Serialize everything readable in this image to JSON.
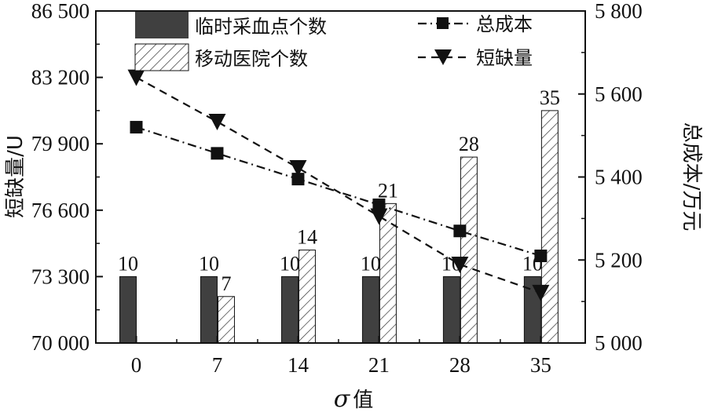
{
  "chart_data": {
    "type": "bar",
    "categories": [
      "0",
      "7",
      "14",
      "21",
      "28",
      "35"
    ],
    "xlabel_symbol": "σ",
    "xlabel_suffix": "值",
    "ylabel_left": "短缺量/U",
    "ylabel_right": "总成本/万元",
    "ylim_left": [
      70000,
      86500
    ],
    "ylim_right": [
      5000,
      5800
    ],
    "yticks_left": [
      70000,
      73300,
      76600,
      79900,
      83200,
      86500
    ],
    "yticks_left_labels": [
      "70 000",
      "73 300",
      "76 600",
      "79 900",
      "83 200",
      "86 500"
    ],
    "yticks_right": [
      5000,
      5200,
      5400,
      5600,
      5800
    ],
    "yticks_right_labels": [
      "5 000",
      "5 200",
      "5 400",
      "5 600",
      "5 800"
    ],
    "bar_series": [
      {
        "name": "临时采血点个数",
        "values": [
          10,
          10,
          10,
          10,
          10,
          10
        ],
        "labels": [
          "10",
          "10",
          "10",
          "10",
          "10",
          "10"
        ],
        "color": "#404040",
        "pattern": "solid"
      },
      {
        "name": "移动医院个数",
        "values": [
          0,
          7,
          14,
          21,
          28,
          35
        ],
        "labels": [
          "",
          "7",
          "14",
          "21",
          "28",
          "35"
        ],
        "color": "#ffffff",
        "pattern": "hatched"
      }
    ],
    "line_series": [
      {
        "name": "总成本",
        "axis": "right",
        "values": [
          5520,
          5457,
          5395,
          5333,
          5270,
          5210
        ],
        "marker": "square",
        "dash": "dash-dot"
      },
      {
        "name": "短缺量",
        "axis": "left",
        "values": [
          83200,
          81000,
          78700,
          76300,
          73900,
          72500
        ],
        "marker": "triangle-down",
        "dash": "dashed"
      }
    ],
    "legend_position": "top"
  }
}
